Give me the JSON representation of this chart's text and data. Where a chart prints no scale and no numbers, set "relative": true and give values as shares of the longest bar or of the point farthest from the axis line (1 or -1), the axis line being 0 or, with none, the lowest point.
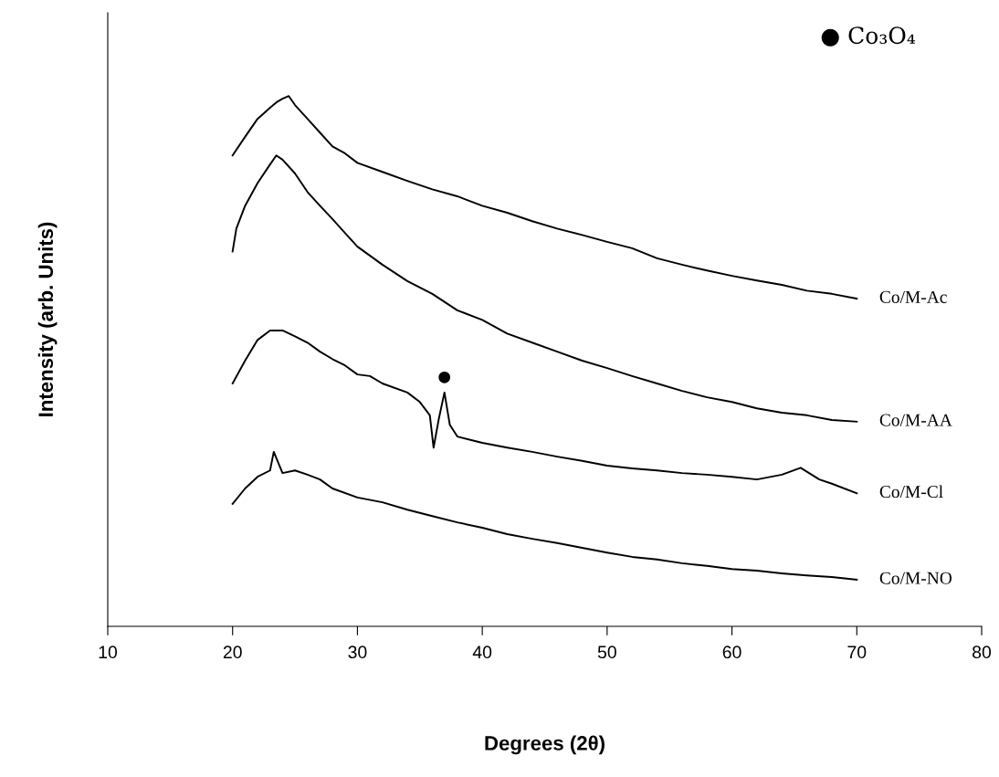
{
  "chart_data": {
    "type": "line",
    "relative": true,
    "xlabel": "Degrees (2θ)",
    "ylabel": "Intensity (arb. Units)",
    "xlim": [
      10,
      80
    ],
    "xticks": [
      10,
      20,
      30,
      40,
      50,
      60,
      70,
      80
    ],
    "grid": false,
    "legend": false,
    "annotations": [
      "● Co₃O₄",
      "●"
    ],
    "series": [
      {
        "name": "Co/M-Ac",
        "color": "#000000",
        "x": [
          20,
          21,
          22,
          23,
          23.5,
          24,
          24.5,
          25,
          26,
          27,
          28,
          29,
          30,
          32,
          34,
          36,
          38,
          40,
          42,
          44,
          46,
          48,
          50,
          52,
          54,
          56,
          58,
          60,
          62,
          64,
          66,
          68,
          70
        ],
        "values": [
          0.888,
          0.923,
          0.957,
          0.978,
          0.988,
          0.995,
          1.0,
          0.983,
          0.957,
          0.931,
          0.905,
          0.892,
          0.874,
          0.857,
          0.84,
          0.824,
          0.811,
          0.793,
          0.78,
          0.764,
          0.75,
          0.738,
          0.725,
          0.713,
          0.694,
          0.682,
          0.671,
          0.661,
          0.652,
          0.644,
          0.633,
          0.627,
          0.618
        ]
      },
      {
        "name": "Co/M-AA",
        "color": "#000000",
        "x": [
          20,
          20.3,
          21,
          22,
          23,
          23.5,
          24,
          25,
          26,
          27,
          28,
          29,
          30,
          32,
          34,
          36,
          38,
          40,
          42,
          44,
          46,
          48,
          50,
          52,
          54,
          56,
          58,
          60,
          62,
          64,
          66,
          68,
          70
        ],
        "values": [
          0.707,
          0.75,
          0.793,
          0.836,
          0.871,
          0.888,
          0.88,
          0.854,
          0.819,
          0.793,
          0.768,
          0.742,
          0.716,
          0.682,
          0.651,
          0.627,
          0.596,
          0.578,
          0.552,
          0.535,
          0.518,
          0.501,
          0.487,
          0.472,
          0.458,
          0.444,
          0.432,
          0.423,
          0.411,
          0.403,
          0.398,
          0.389,
          0.386
        ]
      },
      {
        "name": "Co/M-Cl",
        "color": "#000000",
        "x": [
          20,
          21,
          22,
          23,
          24,
          25,
          26,
          27,
          28,
          29,
          30,
          31,
          32,
          34,
          35,
          35.8,
          36.1,
          36.5,
          36.97,
          37.4,
          38,
          40,
          42,
          44,
          46,
          48,
          50,
          52,
          54,
          56,
          58,
          60,
          62,
          64,
          65.5,
          67,
          68,
          70
        ],
        "values": [
          0.458,
          0.501,
          0.54,
          0.558,
          0.558,
          0.547,
          0.535,
          0.518,
          0.504,
          0.492,
          0.475,
          0.472,
          0.458,
          0.441,
          0.423,
          0.398,
          0.337,
          0.389,
          0.441,
          0.38,
          0.358,
          0.346,
          0.337,
          0.329,
          0.32,
          0.312,
          0.303,
          0.298,
          0.294,
          0.289,
          0.286,
          0.282,
          0.277,
          0.286,
          0.299,
          0.277,
          0.269,
          0.251
        ]
      },
      {
        "name": "Co/M-NO",
        "color": "#000000",
        "x": [
          20,
          21,
          22,
          23,
          23.3,
          24,
          25,
          26,
          27,
          28,
          30,
          32,
          34,
          36,
          38,
          40,
          42,
          44,
          46,
          48,
          50,
          52,
          54,
          56,
          58,
          60,
          62,
          64,
          66,
          68,
          70
        ],
        "values": [
          0.231,
          0.26,
          0.282,
          0.294,
          0.329,
          0.289,
          0.294,
          0.286,
          0.277,
          0.26,
          0.243,
          0.234,
          0.22,
          0.208,
          0.196,
          0.186,
          0.174,
          0.165,
          0.157,
          0.148,
          0.139,
          0.131,
          0.126,
          0.119,
          0.114,
          0.108,
          0.105,
          0.1,
          0.096,
          0.093,
          0.088
        ]
      }
    ]
  }
}
